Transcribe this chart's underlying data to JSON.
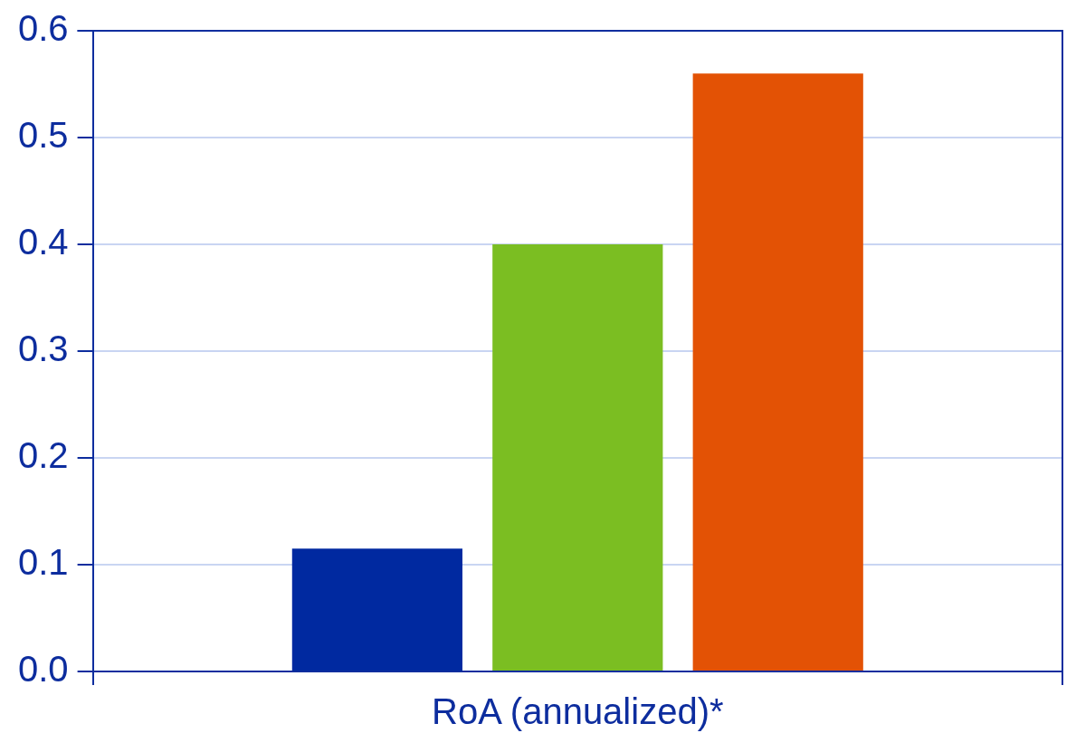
{
  "chart_data": {
    "type": "bar",
    "categories": [
      "RoA (annualized)*"
    ],
    "series": [
      {
        "color": "#0029a0",
        "values": [
          0.115
        ]
      },
      {
        "color": "#7bbe22",
        "values": [
          0.4
        ]
      },
      {
        "color": "#e35205",
        "values": [
          0.56
        ]
      }
    ],
    "ylim": [
      0,
      0.6
    ],
    "yticks": [
      {
        "value": 0,
        "label": "0.0"
      },
      0.1,
      0.2,
      0.3,
      0.4,
      0.5,
      0.6
    ],
    "grid": "y",
    "legend": false
  }
}
